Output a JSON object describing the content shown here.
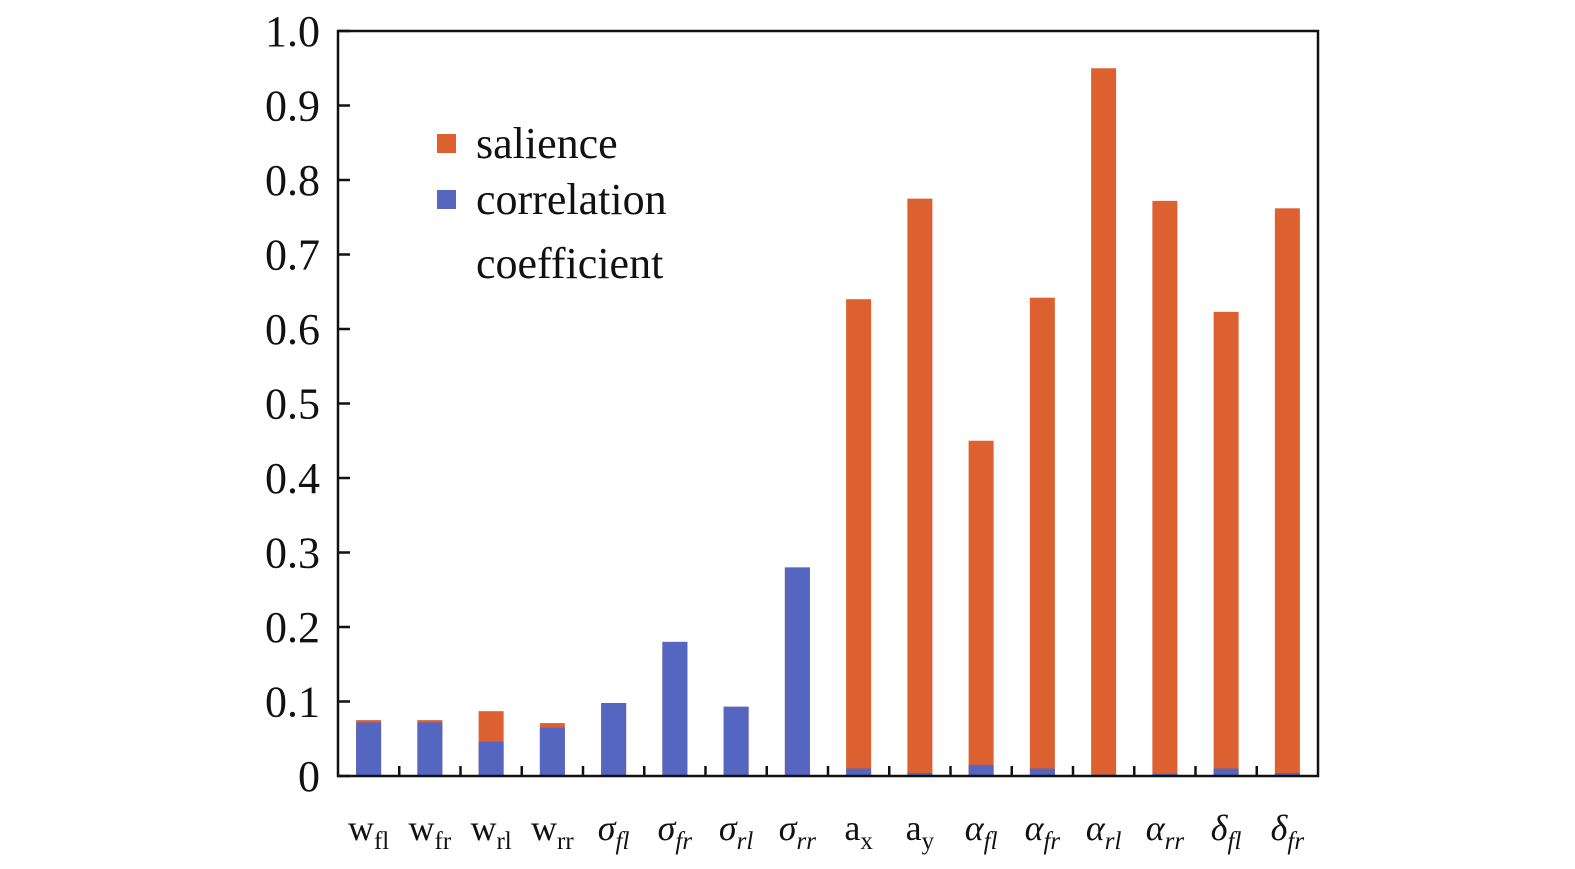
{
  "chart_data": {
    "type": "bar",
    "stacked": false,
    "overlay": true,
    "categories": [
      {
        "base": "w",
        "sub": "fl",
        "italic": false
      },
      {
        "base": "w",
        "sub": "fr",
        "italic": false
      },
      {
        "base": "w",
        "sub": "rl",
        "italic": false
      },
      {
        "base": "w",
        "sub": "rr",
        "italic": false
      },
      {
        "base": "σ",
        "sub": "fl",
        "italic": true
      },
      {
        "base": "σ",
        "sub": "fr",
        "italic": true
      },
      {
        "base": "σ",
        "sub": "rl",
        "italic": true
      },
      {
        "base": "σ",
        "sub": "rr",
        "italic": true
      },
      {
        "base": "a",
        "sub": "x",
        "italic": false
      },
      {
        "base": "a",
        "sub": "y",
        "italic": false
      },
      {
        "base": "α",
        "sub": "fl",
        "italic": true
      },
      {
        "base": "α",
        "sub": "fr",
        "italic": true
      },
      {
        "base": "α",
        "sub": "rl",
        "italic": true
      },
      {
        "base": "α",
        "sub": "rr",
        "italic": true
      },
      {
        "base": "δ",
        "sub": "fl",
        "italic": true
      },
      {
        "base": "δ",
        "sub": "fr",
        "italic": true
      }
    ],
    "series": [
      {
        "name": "salience",
        "color": "#DD6031",
        "values": [
          0.075,
          0.075,
          0.087,
          0.071,
          0.098,
          0.18,
          0.093,
          0.28,
          0.64,
          0.775,
          0.45,
          0.642,
          0.95,
          0.772,
          0.623,
          0.762
        ]
      },
      {
        "name": "correlation coefficient",
        "legend_lines": [
          "correlation",
          "coefficient"
        ],
        "color": "#5566C0",
        "values": [
          0.072,
          0.072,
          0.046,
          0.065,
          0.098,
          0.18,
          0.093,
          0.28,
          0.01,
          0.004,
          0.015,
          0.01,
          0.002,
          0.003,
          0.01,
          0.004
        ]
      }
    ],
    "yticks": [
      "0",
      "0.1",
      "0.2",
      "0.3",
      "0.4",
      "0.5",
      "0.6",
      "0.7",
      "0.8",
      "0.9",
      "1.0"
    ],
    "ylim": [
      0,
      1.0
    ],
    "grid": false,
    "legend_position": "upper-left"
  }
}
